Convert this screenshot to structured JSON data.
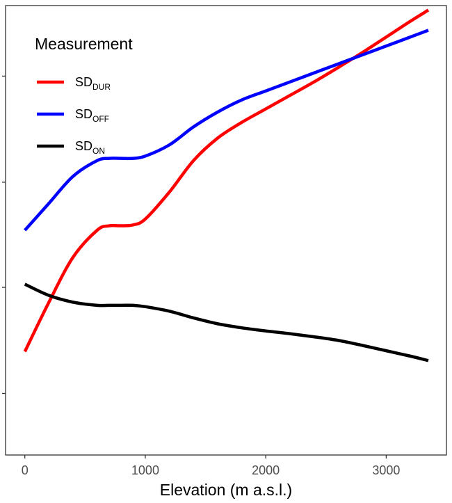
{
  "chart_data": {
    "type": "line",
    "title": "",
    "xlabel": "Elevation (m a.s.l.)",
    "ylabel": "",
    "xlim": [
      -160,
      3500
    ],
    "x_ticks": [
      0,
      1000,
      2000,
      3000
    ],
    "ylim": [
      0,
      1
    ],
    "y_tick_positions": [
      0.137,
      0.373,
      0.607,
      0.843
    ],
    "y_tick_labels_visible": false,
    "grid": false,
    "legend": {
      "title": "Measurement",
      "placement": "top-left",
      "entries": [
        {
          "base": "SD",
          "sub": "DUR",
          "color": "#ff0000"
        },
        {
          "base": "SD",
          "sub": "OFF",
          "color": "#0000ff"
        },
        {
          "base": "SD",
          "sub": "ON",
          "color": "#000000"
        }
      ]
    },
    "series": [
      {
        "name": "SDDUR",
        "color": "#ff0000",
        "x": [
          0,
          200,
          400,
          600,
          700,
          800,
          900,
          1000,
          1200,
          1400,
          1600,
          1800,
          2000,
          2200,
          2400,
          2600,
          2800,
          3000,
          3200,
          3350
        ],
        "y": [
          0.23,
          0.34,
          0.44,
          0.5,
          0.51,
          0.51,
          0.512,
          0.525,
          0.585,
          0.655,
          0.705,
          0.74,
          0.77,
          0.8,
          0.83,
          0.862,
          0.895,
          0.93,
          0.965,
          0.99
        ]
      },
      {
        "name": "SDOFF",
        "color": "#0000ff",
        "x": [
          0,
          200,
          400,
          600,
          700,
          800,
          900,
          1000,
          1200,
          1400,
          1600,
          1800,
          2000,
          2200,
          2400,
          2600,
          2800,
          3000,
          3200,
          3350
        ],
        "y": [
          0.5,
          0.56,
          0.62,
          0.655,
          0.66,
          0.66,
          0.66,
          0.665,
          0.69,
          0.73,
          0.763,
          0.79,
          0.81,
          0.83,
          0.85,
          0.87,
          0.89,
          0.91,
          0.93,
          0.945
        ]
      },
      {
        "name": "SDON",
        "color": "#000000",
        "x": [
          0,
          200,
          400,
          600,
          700,
          800,
          900,
          1000,
          1200,
          1400,
          1600,
          1800,
          2000,
          2200,
          2400,
          2600,
          2800,
          3000,
          3200,
          3350
        ],
        "y": [
          0.38,
          0.355,
          0.34,
          0.333,
          0.333,
          0.333,
          0.333,
          0.33,
          0.32,
          0.305,
          0.292,
          0.283,
          0.276,
          0.27,
          0.263,
          0.255,
          0.244,
          0.232,
          0.22,
          0.21
        ]
      }
    ]
  }
}
